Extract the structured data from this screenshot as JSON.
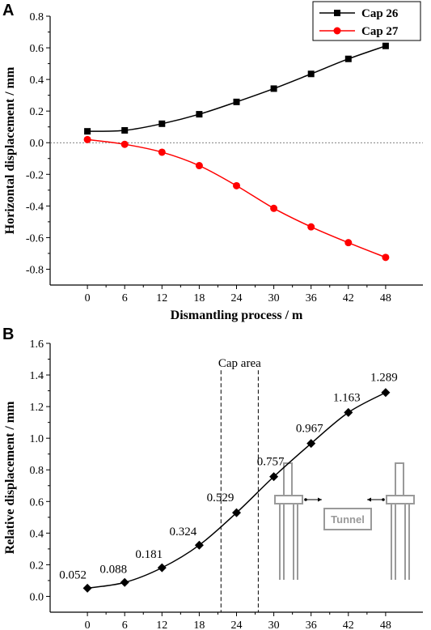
{
  "chart_data": [
    {
      "panel": "A",
      "type": "line",
      "xlabel": "Dismantling process / m",
      "ylabel": "Horizontal displacement / mm",
      "x": [
        0,
        6,
        12,
        18,
        24,
        30,
        36,
        42,
        48
      ],
      "xticks": [
        0,
        6,
        12,
        18,
        24,
        30,
        36,
        42,
        48
      ],
      "xlim": [
        -6,
        54
      ],
      "yticks": [
        -0.8,
        -0.6,
        -0.4,
        -0.2,
        0.0,
        0.2,
        0.4,
        0.6,
        0.8
      ],
      "ylim": [
        -0.9,
        0.8
      ],
      "reference_line_y": 0.0,
      "legend_position": "top-right",
      "series": [
        {
          "name": "Cap 26",
          "color": "#000000",
          "marker": "square",
          "values": [
            0.072,
            0.078,
            0.12,
            0.18,
            0.258,
            0.342,
            0.435,
            0.53,
            0.612
          ]
        },
        {
          "name": "Cap 27",
          "color": "#ff0000",
          "marker": "circle",
          "values": [
            0.02,
            -0.01,
            -0.06,
            -0.145,
            -0.272,
            -0.415,
            -0.532,
            -0.632,
            -0.725
          ]
        }
      ]
    },
    {
      "panel": "B",
      "type": "line",
      "xlabel": "Dismantling process / m",
      "ylabel": "Relative displacement / mm",
      "x": [
        0,
        6,
        12,
        18,
        24,
        30,
        36,
        42,
        48
      ],
      "xticks": [
        0,
        6,
        12,
        18,
        24,
        30,
        36,
        42,
        48
      ],
      "xlim": [
        -6,
        54
      ],
      "yticks": [
        0.0,
        0.2,
        0.4,
        0.6,
        0.8,
        1.0,
        1.2,
        1.4,
        1.6
      ],
      "ylim": [
        -0.1,
        1.6
      ],
      "series": [
        {
          "color": "#000000",
          "marker": "diamond",
          "values": [
            0.052,
            0.088,
            0.181,
            0.324,
            0.529,
            0.757,
            0.967,
            1.163,
            1.289
          ],
          "labels": [
            "0.052",
            "0.088",
            "0.181",
            "0.324",
            "0.529",
            "0.757",
            "0.967",
            "1.163",
            "1.289"
          ]
        }
      ],
      "cap_area": {
        "label": "Cap area",
        "x_range": [
          21.5,
          27.5
        ]
      },
      "inset_label": "Tunnel"
    }
  ]
}
